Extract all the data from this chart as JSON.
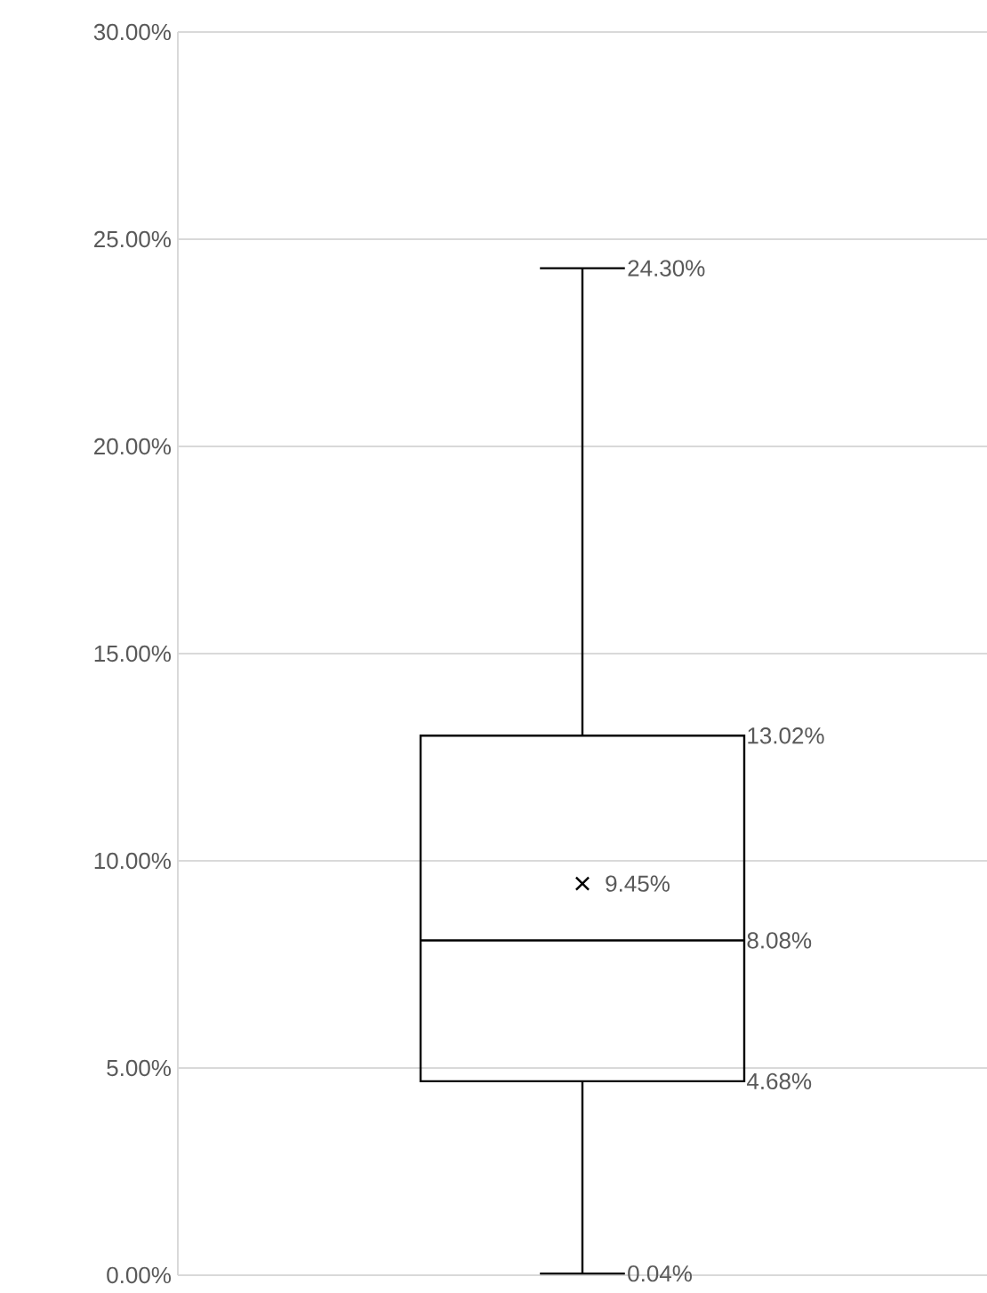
{
  "chart_data": {
    "type": "box",
    "categories": [
      null
    ],
    "boxes": [
      {
        "low": 0.04,
        "q1": 4.68,
        "median": 8.08,
        "q3": 13.02,
        "high": 24.3,
        "mean": 9.45
      }
    ],
    "ylim": [
      0,
      30
    ],
    "yticks": [
      {
        "value": 0,
        "label": "0.00%"
      },
      {
        "value": 5,
        "label": "5.00%"
      },
      {
        "value": 10,
        "label": "10.00%"
      },
      {
        "value": 15,
        "label": "15.00%"
      },
      {
        "value": 20,
        "label": "20.00%"
      },
      {
        "value": 25,
        "label": "25.00%"
      },
      {
        "value": 30,
        "label": "30.00%"
      }
    ],
    "grid": "y",
    "annotations": [
      "24.30%",
      "13.02%",
      "9.45%",
      "8.08%",
      "4.68%",
      "0.04%"
    ]
  }
}
